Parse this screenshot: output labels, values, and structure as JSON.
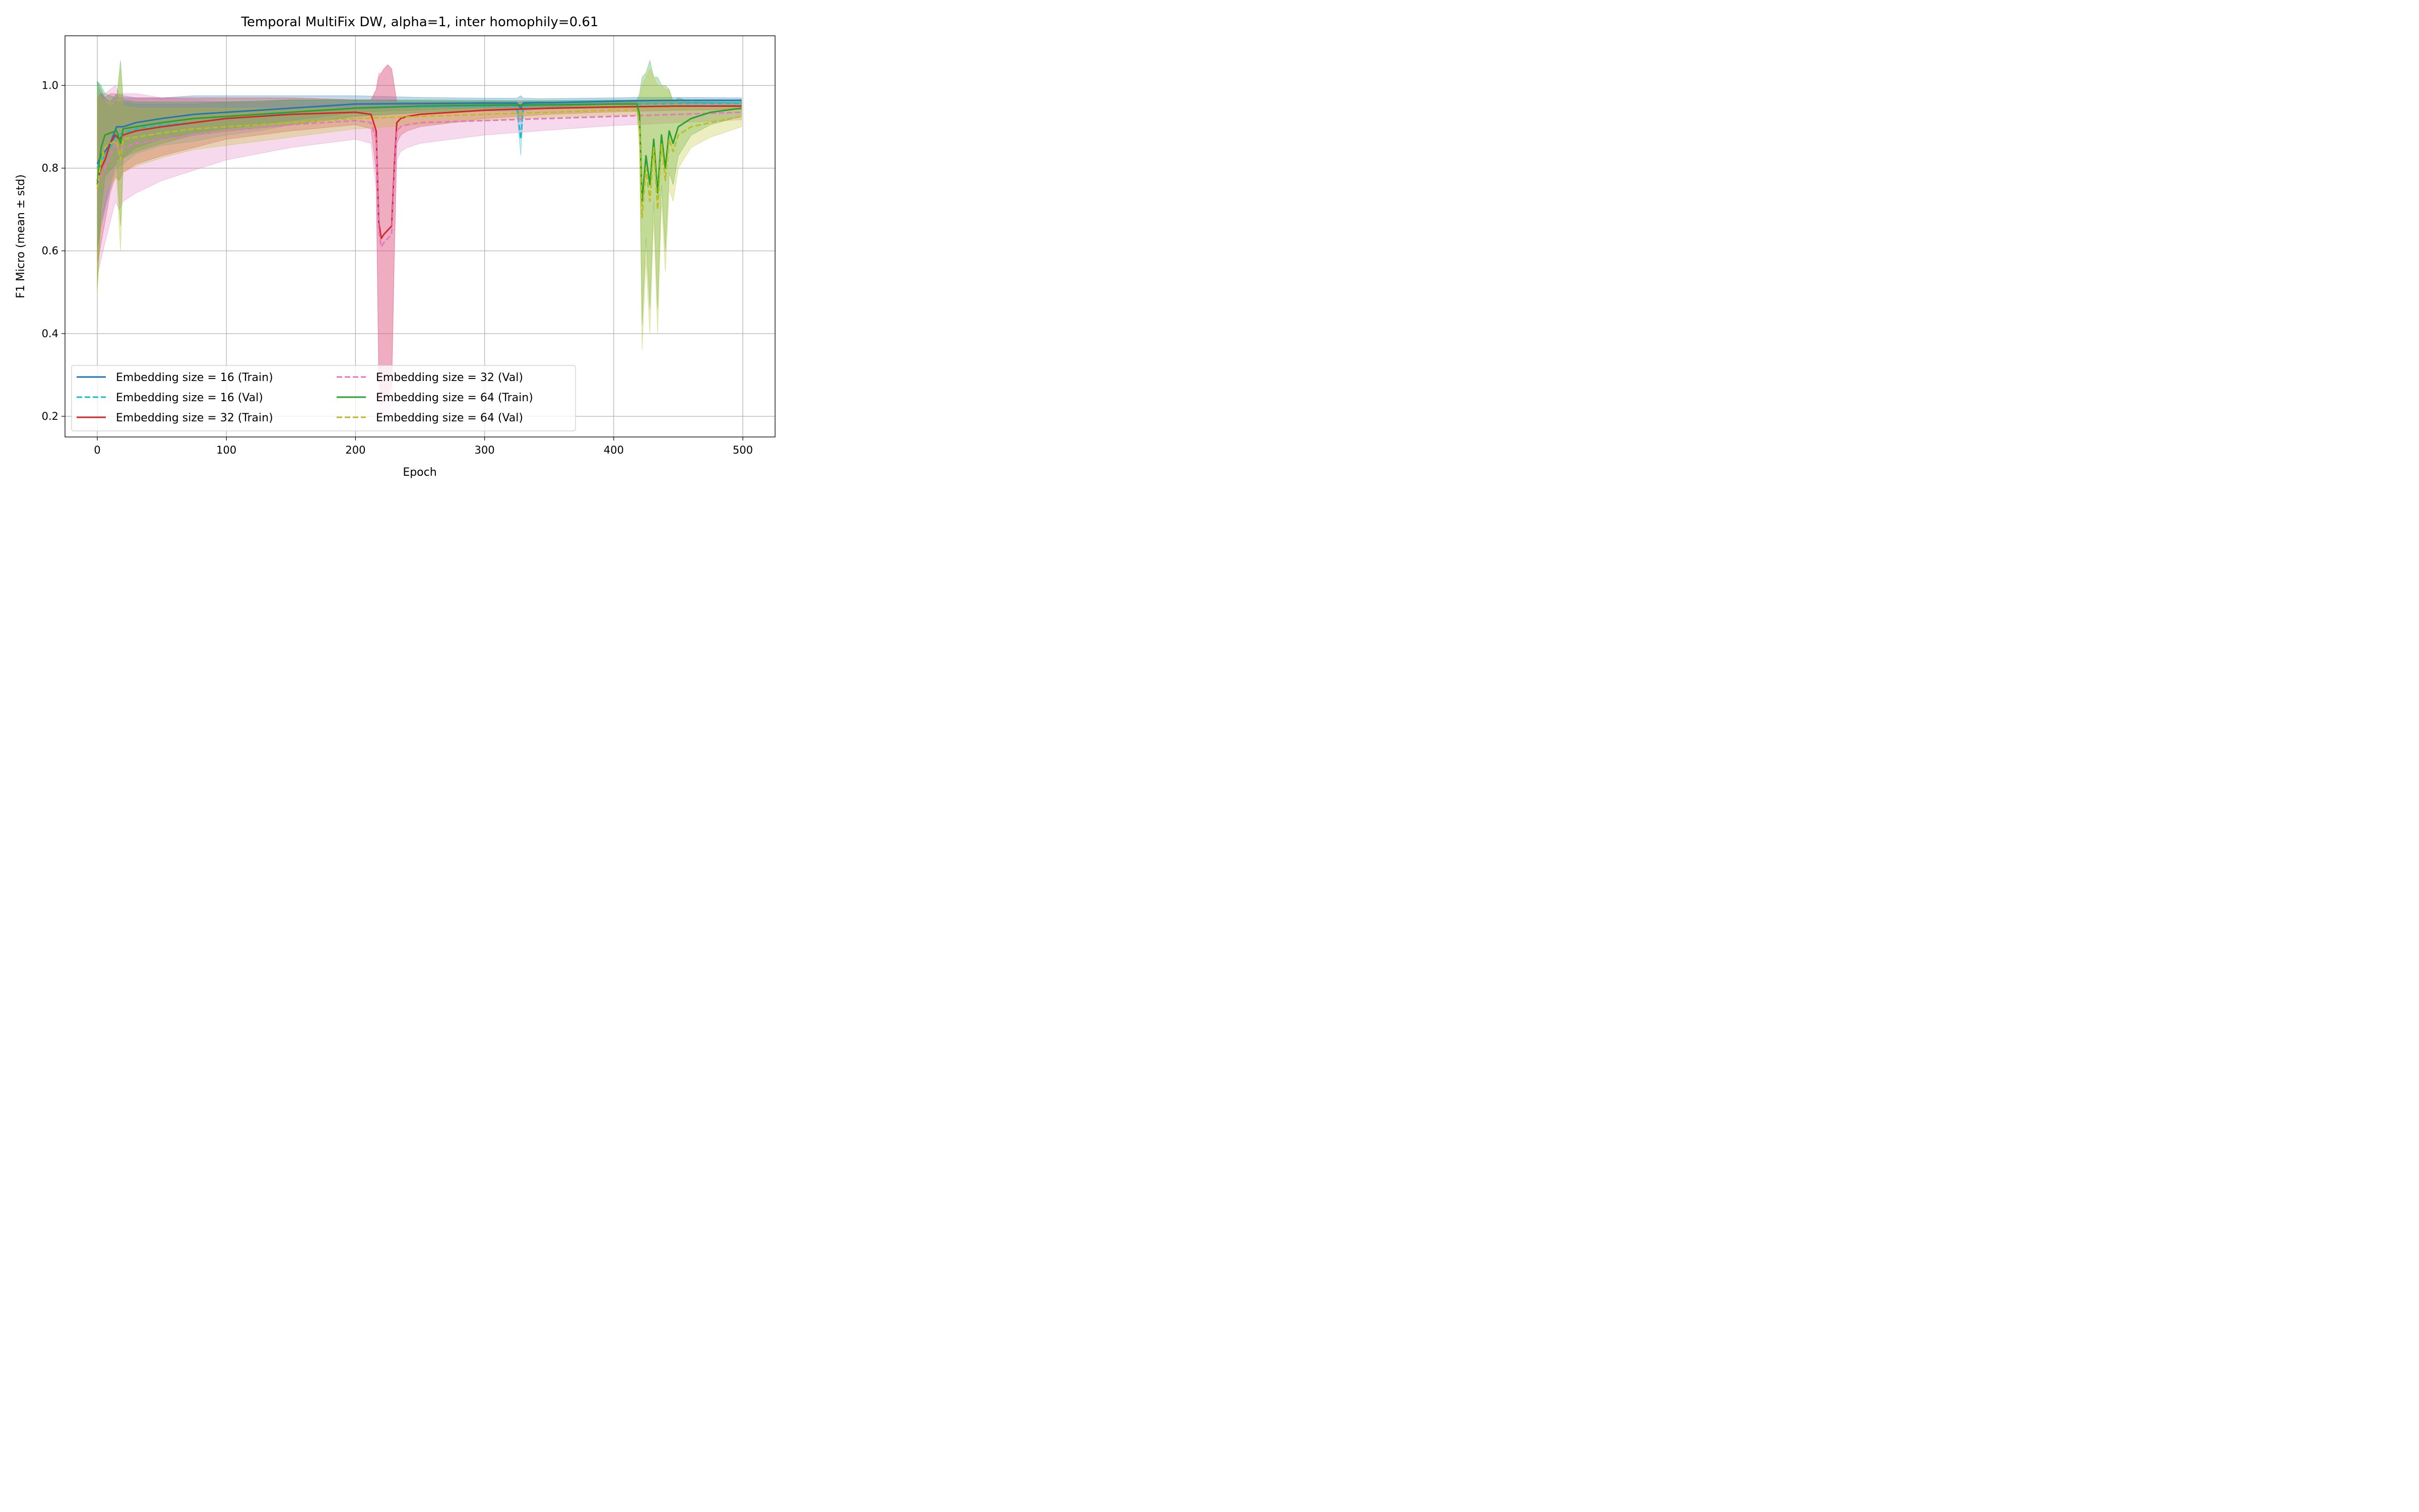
{
  "chart_data": {
    "type": "line",
    "title": "Temporal MultiFix DW, alpha=1, inter homophily=0.61",
    "xlabel": "Epoch",
    "ylabel": "F1 Micro (mean ± std)",
    "xlim": [
      -25,
      525
    ],
    "ylim": [
      0.15,
      1.12
    ],
    "xticks": [
      0,
      100,
      200,
      300,
      400,
      500
    ],
    "yticks": [
      0.2,
      0.4,
      0.6,
      0.8,
      1.0
    ],
    "xtick_labels": [
      "0",
      "100",
      "200",
      "300",
      "400",
      "500"
    ],
    "ytick_labels": [
      "0.2",
      "0.4",
      "0.6",
      "0.8",
      "1.0"
    ],
    "grid": true,
    "legend_position": "lower-left",
    "series": [
      {
        "name": "Embedding size = 16 (Train)",
        "color": "#1f77b4",
        "style": "solid",
        "x": [
          0,
          3,
          6,
          10,
          15,
          20,
          30,
          40,
          50,
          75,
          100,
          125,
          150,
          175,
          200,
          250,
          300,
          325,
          328,
          330,
          340,
          350,
          400,
          420,
          450,
          499
        ],
        "mean": [
          0.81,
          0.83,
          0.84,
          0.86,
          0.9,
          0.9,
          0.91,
          0.915,
          0.92,
          0.93,
          0.935,
          0.94,
          0.945,
          0.95,
          0.955,
          0.956,
          0.957,
          0.957,
          0.945,
          0.957,
          0.958,
          0.958,
          0.962,
          0.963,
          0.964,
          0.964
        ],
        "std": [
          0.2,
          0.16,
          0.13,
          0.1,
          0.08,
          0.075,
          0.06,
          0.055,
          0.05,
          0.045,
          0.04,
          0.035,
          0.03,
          0.025,
          0.02,
          0.015,
          0.012,
          0.012,
          0.03,
          0.012,
          0.01,
          0.01,
          0.008,
          0.008,
          0.007,
          0.006
        ]
      },
      {
        "name": "Embedding size = 16 (Val)",
        "color": "#17becf",
        "style": "dashed",
        "x": [
          0,
          3,
          6,
          10,
          15,
          20,
          30,
          40,
          50,
          75,
          100,
          125,
          150,
          175,
          200,
          250,
          300,
          325,
          328,
          330,
          340,
          350,
          400,
          420,
          450,
          499
        ],
        "mean": [
          0.8,
          0.82,
          0.83,
          0.85,
          0.88,
          0.885,
          0.895,
          0.9,
          0.905,
          0.91,
          0.92,
          0.925,
          0.935,
          0.94,
          0.945,
          0.948,
          0.95,
          0.95,
          0.87,
          0.95,
          0.952,
          0.953,
          0.955,
          0.955,
          0.956,
          0.957
        ],
        "std": [
          0.2,
          0.16,
          0.13,
          0.1,
          0.08,
          0.075,
          0.06,
          0.055,
          0.05,
          0.045,
          0.04,
          0.035,
          0.03,
          0.025,
          0.02,
          0.015,
          0.012,
          0.012,
          0.04,
          0.012,
          0.01,
          0.01,
          0.008,
          0.008,
          0.007,
          0.006
        ]
      },
      {
        "name": "Embedding size = 32 (Train)",
        "color": "#d62728",
        "style": "solid",
        "x": [
          0,
          3,
          6,
          10,
          14,
          17,
          20,
          30,
          50,
          75,
          100,
          150,
          200,
          212,
          216,
          218,
          220,
          222,
          225,
          228,
          230,
          232,
          235,
          240,
          250,
          300,
          350,
          400,
          450,
          499
        ],
        "mean": [
          0.77,
          0.8,
          0.82,
          0.86,
          0.88,
          0.87,
          0.88,
          0.89,
          0.9,
          0.91,
          0.92,
          0.93,
          0.935,
          0.93,
          0.89,
          0.67,
          0.63,
          0.64,
          0.65,
          0.66,
          0.8,
          0.91,
          0.92,
          0.925,
          0.93,
          0.94,
          0.945,
          0.948,
          0.95,
          0.95
        ],
        "std": [
          0.2,
          0.18,
          0.15,
          0.12,
          0.1,
          0.1,
          0.09,
          0.08,
          0.07,
          0.06,
          0.05,
          0.04,
          0.03,
          0.035,
          0.1,
          0.35,
          0.4,
          0.4,
          0.4,
          0.38,
          0.2,
          0.05,
          0.04,
          0.035,
          0.03,
          0.02,
          0.015,
          0.012,
          0.01,
          0.008
        ]
      },
      {
        "name": "Embedding size = 32 (Val)",
        "color": "#e377c2",
        "style": "dashed",
        "x": [
          0,
          3,
          6,
          10,
          14,
          17,
          20,
          30,
          50,
          75,
          100,
          150,
          200,
          212,
          216,
          218,
          220,
          222,
          225,
          228,
          230,
          232,
          235,
          240,
          250,
          300,
          350,
          400,
          450,
          499
        ],
        "mean": [
          0.76,
          0.78,
          0.8,
          0.83,
          0.86,
          0.84,
          0.85,
          0.86,
          0.87,
          0.88,
          0.89,
          0.905,
          0.915,
          0.91,
          0.87,
          0.65,
          0.61,
          0.62,
          0.63,
          0.64,
          0.78,
          0.89,
          0.9,
          0.905,
          0.91,
          0.915,
          0.92,
          0.925,
          0.93,
          0.935
        ],
        "std": [
          0.22,
          0.2,
          0.18,
          0.16,
          0.14,
          0.14,
          0.13,
          0.12,
          0.1,
          0.085,
          0.07,
          0.055,
          0.045,
          0.05,
          0.12,
          0.38,
          0.42,
          0.42,
          0.42,
          0.4,
          0.22,
          0.07,
          0.06,
          0.055,
          0.05,
          0.035,
          0.028,
          0.022,
          0.02,
          0.018
        ]
      },
      {
        "name": "Embedding size = 64 (Train)",
        "color": "#2ca02c",
        "style": "solid",
        "x": [
          0,
          3,
          6,
          10,
          15,
          18,
          20,
          30,
          50,
          75,
          100,
          150,
          200,
          250,
          300,
          350,
          400,
          418,
          420,
          422,
          425,
          428,
          431,
          434,
          437,
          440,
          443,
          446,
          450,
          460,
          475,
          499
        ],
        "mean": [
          0.76,
          0.85,
          0.88,
          0.885,
          0.89,
          0.86,
          0.895,
          0.9,
          0.91,
          0.92,
          0.925,
          0.935,
          0.945,
          0.95,
          0.952,
          0.953,
          0.955,
          0.955,
          0.93,
          0.72,
          0.83,
          0.76,
          0.87,
          0.74,
          0.88,
          0.8,
          0.89,
          0.86,
          0.9,
          0.92,
          0.935,
          0.945
        ],
        "std": [
          0.25,
          0.15,
          0.1,
          0.09,
          0.08,
          0.2,
          0.07,
          0.06,
          0.05,
          0.04,
          0.035,
          0.03,
          0.02,
          0.015,
          0.012,
          0.01,
          0.01,
          0.01,
          0.05,
          0.3,
          0.2,
          0.3,
          0.15,
          0.28,
          0.12,
          0.2,
          0.1,
          0.1,
          0.07,
          0.04,
          0.03,
          0.02
        ]
      },
      {
        "name": "Embedding size = 64 (Val)",
        "color": "#bcbd22",
        "style": "dashed",
        "x": [
          0,
          3,
          6,
          10,
          15,
          18,
          20,
          30,
          50,
          75,
          100,
          150,
          200,
          250,
          300,
          350,
          400,
          418,
          420,
          422,
          425,
          428,
          431,
          434,
          437,
          440,
          443,
          446,
          450,
          460,
          475,
          499
        ],
        "mean": [
          0.75,
          0.82,
          0.85,
          0.86,
          0.865,
          0.82,
          0.87,
          0.875,
          0.885,
          0.895,
          0.9,
          0.91,
          0.92,
          0.925,
          0.93,
          0.935,
          0.94,
          0.94,
          0.91,
          0.68,
          0.8,
          0.72,
          0.85,
          0.7,
          0.86,
          0.77,
          0.87,
          0.84,
          0.88,
          0.9,
          0.91,
          0.925
        ],
        "std": [
          0.25,
          0.15,
          0.11,
          0.1,
          0.09,
          0.22,
          0.08,
          0.07,
          0.06,
          0.05,
          0.045,
          0.035,
          0.025,
          0.02,
          0.015,
          0.012,
          0.012,
          0.012,
          0.06,
          0.32,
          0.22,
          0.32,
          0.17,
          0.3,
          0.14,
          0.22,
          0.12,
          0.12,
          0.08,
          0.05,
          0.035,
          0.025
        ]
      }
    ]
  }
}
